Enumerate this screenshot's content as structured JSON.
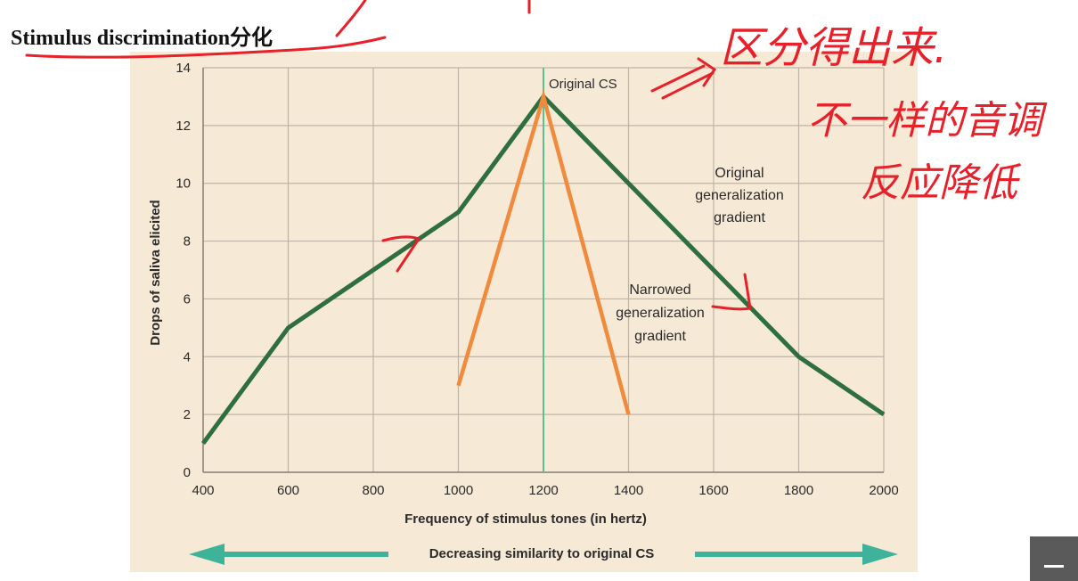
{
  "slide": {
    "title": "Stimulus discrimination分化"
  },
  "handwriting": {
    "line1": "区分得出来.",
    "line2": "不一样的音调",
    "line3": "反应降低",
    "color": "#e8202a"
  },
  "colors": {
    "panel": "#f6ead6",
    "grid": "#bdb3a6",
    "original_gradient": "#2f6e3f",
    "narrowed_gradient": "#f08a3c",
    "cs_line": "#5fc08f",
    "arrow": "#3fb39a",
    "text": "#2a2a2a"
  },
  "chart_data": {
    "type": "line",
    "xlabel": "Frequency of stimulus tones (in hertz)",
    "ylabel": "Drops of saliva elicited",
    "xlim": [
      400,
      2000
    ],
    "ylim": [
      0,
      14
    ],
    "x_ticks": [
      400,
      600,
      800,
      1000,
      1200,
      1400,
      1600,
      1800,
      2000
    ],
    "y_ticks": [
      0,
      2,
      4,
      6,
      8,
      10,
      12,
      14
    ],
    "grid": true,
    "series": [
      {
        "name": "Original generalization gradient",
        "points": [
          [
            400,
            1
          ],
          [
            600,
            5
          ],
          [
            1000,
            9
          ],
          [
            1200,
            13
          ],
          [
            1400,
            10
          ],
          [
            1800,
            4
          ],
          [
            2000,
            2
          ]
        ]
      },
      {
        "name": "Narrowed generalization gradient",
        "points": [
          [
            1000,
            3
          ],
          [
            1200,
            13
          ],
          [
            1400,
            2
          ]
        ]
      }
    ],
    "reference_line": {
      "x": 1200,
      "label": "Original CS"
    },
    "annotations": {
      "original": [
        "Original",
        "generalization",
        "gradient"
      ],
      "narrowed": [
        "Narrowed",
        "generalization",
        "gradient"
      ]
    },
    "similarity_label": "Decreasing similarity to original CS"
  }
}
